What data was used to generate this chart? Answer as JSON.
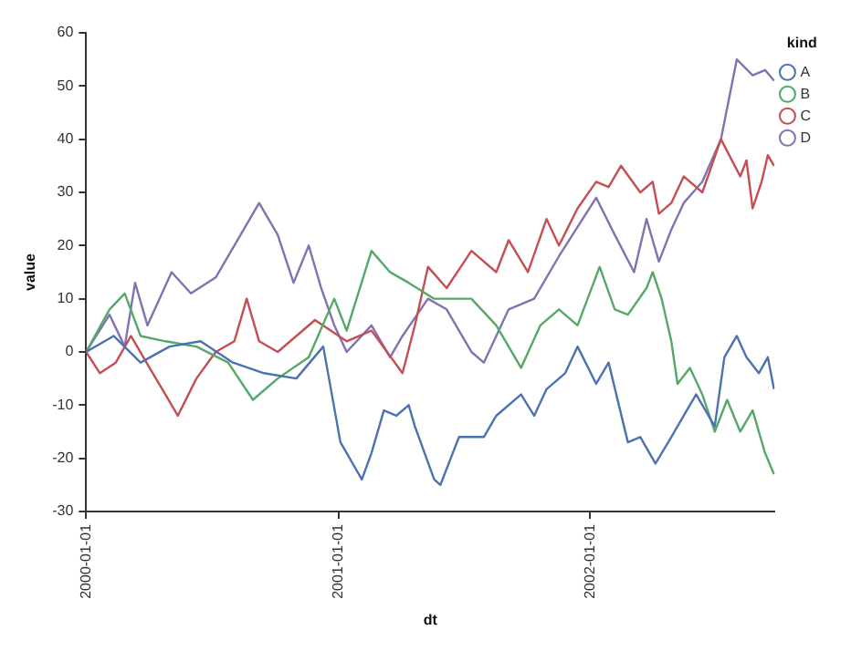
{
  "chart_data": {
    "type": "line",
    "xlabel": "dt",
    "ylabel": "value",
    "legend_title": "kind",
    "legend": "top right",
    "grid": false,
    "xlim": [
      "2000-01-01",
      "2002-09-26"
    ],
    "xticks": [
      "2000-01-01",
      "2001-01-01",
      "2002-01-01"
    ],
    "ylim": [
      -30,
      60
    ],
    "yticks": [
      -30,
      -20,
      -10,
      0,
      10,
      20,
      30,
      40,
      50,
      60
    ],
    "series": [
      {
        "name": "A",
        "color": "#4c72b0",
        "x": [
          "2000-01-01",
          "2000-02-10",
          "2000-03-20",
          "2000-05-01",
          "2000-06-15",
          "2000-08-01",
          "2000-09-15",
          "2000-11-01",
          "2000-12-10",
          "2001-01-04",
          "2001-01-13",
          "2001-02-04",
          "2001-02-18",
          "2001-03-08",
          "2001-03-26",
          "2001-04-13",
          "2001-04-22",
          "2001-05-20",
          "2001-05-29",
          "2001-06-25",
          "2001-07-31",
          "2001-08-18",
          "2001-09-23",
          "2001-10-12",
          "2001-10-30",
          "2001-11-26",
          "2001-12-14",
          "2002-01-10",
          "2002-01-28",
          "2002-02-25",
          "2002-03-15",
          "2002-04-06",
          "2002-04-29",
          "2002-05-17",
          "2002-06-04",
          "2002-07-01",
          "2002-07-15",
          "2002-08-02",
          "2002-08-16",
          "2002-09-03",
          "2002-09-16",
          "2002-09-25"
        ],
        "values": [
          0,
          3,
          -2,
          1,
          2,
          -2,
          -4,
          -5,
          1,
          -17,
          -19,
          -24,
          -19,
          -11,
          -12,
          -10,
          -14,
          -24,
          -25,
          -16,
          -16,
          -12,
          -8,
          -12,
          -7,
          -4,
          1,
          -6,
          -2,
          -17,
          -16,
          -21,
          -16,
          -12,
          -8,
          -14,
          -1,
          3,
          -1,
          -4,
          -1,
          -7
        ]
      },
      {
        "name": "B",
        "color": "#55a868",
        "x": [
          "2000-01-01",
          "2000-02-04",
          "2000-02-26",
          "2000-03-20",
          "2000-04-25",
          "2000-06-09",
          "2000-07-25",
          "2000-08-30",
          "2000-10-05",
          "2000-11-19",
          "2000-12-26",
          "2001-01-13",
          "2001-02-18",
          "2001-03-17",
          "2001-04-13",
          "2001-05-20",
          "2001-07-13",
          "2001-08-18",
          "2001-09-23",
          "2001-10-21",
          "2001-11-17",
          "2001-12-14",
          "2002-01-15",
          "2002-02-06",
          "2002-02-25",
          "2002-03-24",
          "2002-04-02",
          "2002-04-15",
          "2002-04-29",
          "2002-05-08",
          "2002-05-26",
          "2002-06-13",
          "2002-07-01",
          "2002-07-19",
          "2002-08-07",
          "2002-08-25",
          "2002-09-12",
          "2002-09-25"
        ],
        "values": [
          0,
          8,
          11,
          3,
          2,
          1,
          -2,
          -9,
          -5,
          -1,
          10,
          4,
          19,
          15,
          13,
          10,
          10,
          5,
          -3,
          5,
          8,
          5,
          16,
          8,
          7,
          12,
          15,
          10,
          2,
          -6,
          -3,
          -8,
          -15,
          -9,
          -15,
          -11,
          -19,
          -23
        ]
      },
      {
        "name": "C",
        "color": "#c44e52",
        "x": [
          "2000-01-01",
          "2000-01-21",
          "2000-02-13",
          "2000-03-06",
          "2000-04-02",
          "2000-04-25",
          "2000-05-13",
          "2000-06-09",
          "2000-07-07",
          "2000-08-03",
          "2000-08-21",
          "2000-09-08",
          "2000-10-05",
          "2000-11-01",
          "2000-11-28",
          "2001-01-13",
          "2001-02-18",
          "2001-04-04",
          "2001-04-22",
          "2001-05-11",
          "2001-06-07",
          "2001-07-13",
          "2001-08-18",
          "2001-09-05",
          "2001-10-03",
          "2001-10-30",
          "2001-11-17",
          "2001-12-14",
          "2002-01-10",
          "2002-01-28",
          "2002-02-15",
          "2002-03-15",
          "2002-04-02",
          "2002-04-11",
          "2002-04-29",
          "2002-05-17",
          "2002-06-13",
          "2002-07-10",
          "2002-08-07",
          "2002-08-16",
          "2002-08-25",
          "2002-09-07",
          "2002-09-16",
          "2002-09-25"
        ],
        "values": [
          0,
          -4,
          -2,
          3,
          -3,
          -8,
          -12,
          -5,
          0,
          2,
          10,
          2,
          0,
          3,
          6,
          2,
          4,
          -4,
          5,
          16,
          12,
          19,
          15,
          21,
          15,
          25,
          20,
          27,
          32,
          31,
          35,
          30,
          32,
          26,
          28,
          33,
          30,
          40,
          33,
          36,
          27,
          32,
          37,
          35
        ]
      },
      {
        "name": "D",
        "color": "#8172b2",
        "x": [
          "2000-01-01",
          "2000-02-04",
          "2000-02-26",
          "2000-03-12",
          "2000-03-30",
          "2000-05-04",
          "2000-06-01",
          "2000-07-07",
          "2000-08-03",
          "2000-09-08",
          "2000-10-05",
          "2000-10-28",
          "2000-11-19",
          "2000-12-07",
          "2000-12-26",
          "2001-01-13",
          "2001-02-18",
          "2001-03-17",
          "2001-04-04",
          "2001-05-11",
          "2001-06-07",
          "2001-07-13",
          "2001-07-31",
          "2001-09-05",
          "2001-10-12",
          "2001-11-17",
          "2002-01-10",
          "2002-02-06",
          "2002-03-06",
          "2002-03-24",
          "2002-04-11",
          "2002-04-29",
          "2002-05-17",
          "2002-06-13",
          "2002-07-10",
          "2002-08-02",
          "2002-08-25",
          "2002-09-12",
          "2002-09-25"
        ],
        "values": [
          0,
          7,
          1,
          13,
          5,
          15,
          11,
          14,
          20,
          28,
          22,
          13,
          20,
          12,
          5,
          0,
          5,
          -1,
          3,
          10,
          8,
          0,
          -2,
          8,
          10,
          18,
          29,
          22,
          15,
          25,
          17,
          23,
          28,
          32,
          40,
          55,
          52,
          53,
          51
        ]
      }
    ]
  }
}
